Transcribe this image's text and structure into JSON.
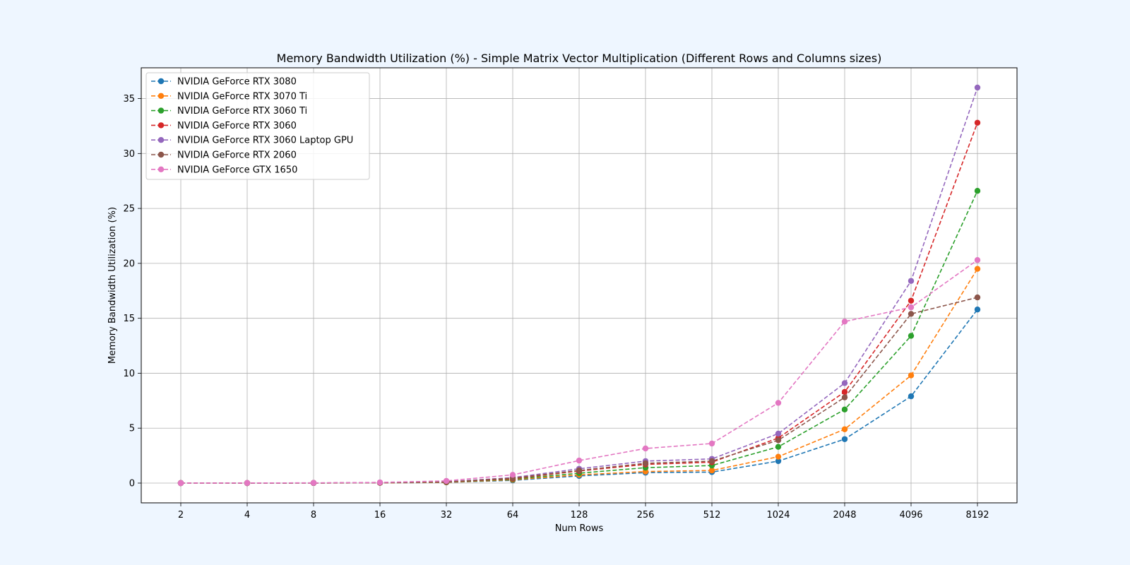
{
  "chart_data": {
    "type": "line",
    "title": "Memory Bandwidth Utilization (%) - Simple Matrix Vector Multiplication (Different Rows and Columns sizes)",
    "xlabel": "Num Rows",
    "ylabel": "Memory Bandwidth Utilization (%)",
    "categories": [
      "2",
      "4",
      "8",
      "16",
      "32",
      "64",
      "128",
      "256",
      "512",
      "1024",
      "2048",
      "4096",
      "8192"
    ],
    "ylim": [
      -1.8,
      37.8
    ],
    "yticks": [
      0,
      5,
      10,
      15,
      20,
      25,
      30,
      35
    ],
    "grid": true,
    "legend_position": "top-left",
    "line_style": "dashed",
    "marker": "circle",
    "series": [
      {
        "name": "NVIDIA GeForce RTX 3080",
        "color": "#1f77b4",
        "values": [
          0.0,
          0.0,
          0.01,
          0.02,
          0.06,
          0.25,
          0.65,
          0.95,
          1.0,
          2.0,
          4.0,
          7.9,
          15.8
        ]
      },
      {
        "name": "NVIDIA GeForce RTX 3070 Ti",
        "color": "#ff7f0e",
        "values": [
          0.0,
          0.0,
          0.01,
          0.02,
          0.07,
          0.3,
          0.75,
          1.05,
          1.15,
          2.4,
          4.9,
          9.8,
          19.5
        ]
      },
      {
        "name": "NVIDIA GeForce RTX 3060 Ti",
        "color": "#2ca02c",
        "values": [
          0.0,
          0.0,
          0.01,
          0.03,
          0.09,
          0.35,
          0.9,
          1.4,
          1.6,
          3.3,
          6.7,
          13.4,
          26.6
        ]
      },
      {
        "name": "NVIDIA GeForce RTX 3060",
        "color": "#d62728",
        "values": [
          0.0,
          0.0,
          0.01,
          0.03,
          0.1,
          0.4,
          1.1,
          1.7,
          1.9,
          4.1,
          8.3,
          16.6,
          32.8
        ]
      },
      {
        "name": "NVIDIA GeForce RTX 3060 Laptop GPU",
        "color": "#9467bd",
        "values": [
          0.0,
          0.0,
          0.01,
          0.04,
          0.12,
          0.5,
          1.3,
          2.0,
          2.2,
          4.5,
          9.1,
          18.4,
          36.0
        ]
      },
      {
        "name": "NVIDIA GeForce RTX 2060",
        "color": "#8c564b",
        "values": [
          0.0,
          0.0,
          0.01,
          0.03,
          0.1,
          0.45,
          1.15,
          1.8,
          2.0,
          3.9,
          7.8,
          15.4,
          16.9
        ]
      },
      {
        "name": "NVIDIA GeForce GTX 1650",
        "color": "#e377c2",
        "values": [
          0.0,
          0.01,
          0.02,
          0.06,
          0.2,
          0.75,
          2.05,
          3.15,
          3.6,
          7.3,
          14.7,
          16.0,
          20.3
        ]
      }
    ]
  }
}
